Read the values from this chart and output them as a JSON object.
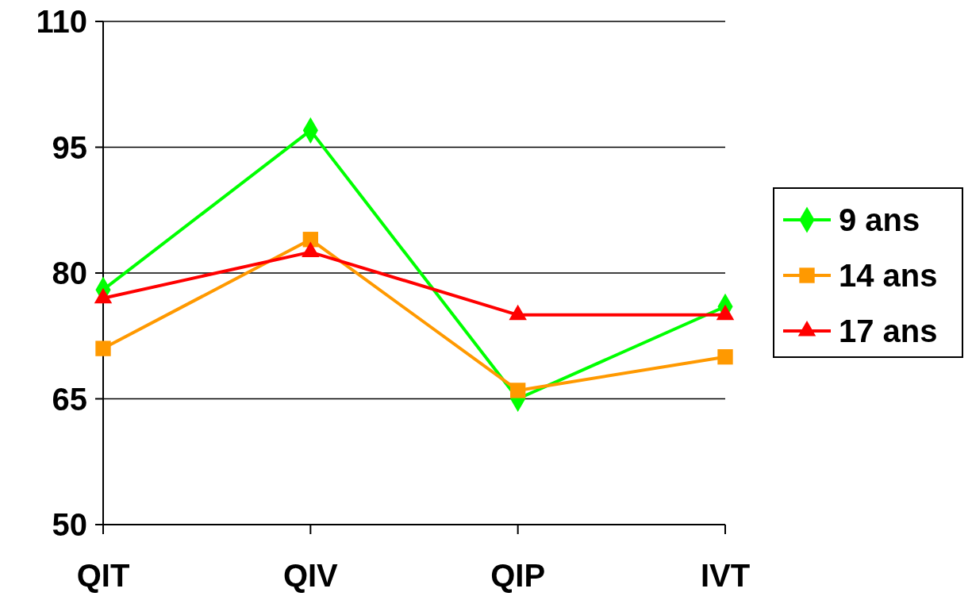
{
  "chart_data": {
    "type": "line",
    "categories": [
      "QIT",
      "QIV",
      "QIP",
      "IVT"
    ],
    "series": [
      {
        "name": "9 ans",
        "color": "#00ff00",
        "marker": "diamond",
        "values": [
          78,
          97,
          65,
          76
        ]
      },
      {
        "name": "14 ans",
        "color": "#ff9900",
        "marker": "square",
        "values": [
          71,
          84,
          66,
          70
        ]
      },
      {
        "name": "17 ans",
        "color": "#ff0000",
        "marker": "triangle",
        "values": [
          77,
          82.5,
          75,
          75
        ]
      }
    ],
    "ylim": [
      50,
      110
    ],
    "yticks": [
      50,
      65,
      80,
      95,
      110
    ],
    "grid": "y",
    "legend": "right"
  }
}
